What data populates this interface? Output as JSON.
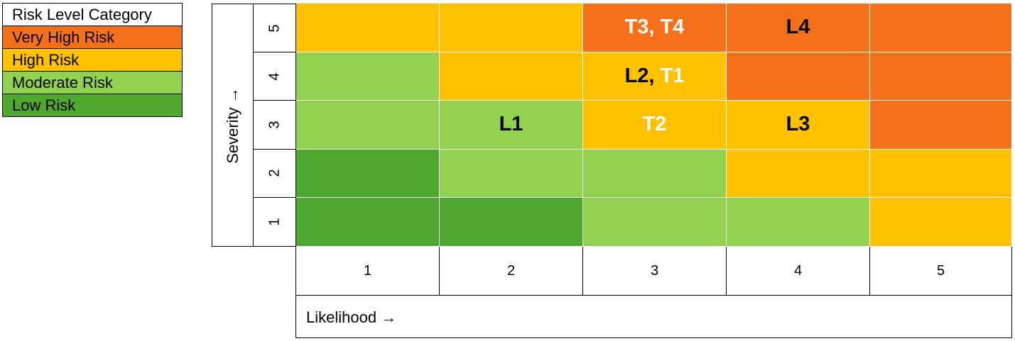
{
  "legend": {
    "title": "Risk Level Category",
    "items": [
      {
        "label": "Very High Risk",
        "color": "#F4711A"
      },
      {
        "label": "High Risk",
        "color": "#FFC000"
      },
      {
        "label": "Moderate Risk",
        "color": "#92D050"
      },
      {
        "label": "Low Risk",
        "color": "#4EA72E"
      }
    ]
  },
  "axes": {
    "y_label": "Severity →",
    "x_label": "Likelihood →",
    "y_ticks": [
      "5",
      "4",
      "3",
      "2",
      "1"
    ],
    "x_ticks": [
      "1",
      "2",
      "3",
      "4",
      "5"
    ]
  },
  "matrix": {
    "rows": [
      {
        "severity": "5",
        "cells": [
          {
            "level": "High Risk",
            "labels": []
          },
          {
            "level": "High Risk",
            "labels": []
          },
          {
            "level": "Very High Risk",
            "labels": [
              {
                "text": "T3, T4",
                "color": "#FFFFFF"
              }
            ]
          },
          {
            "level": "Very High Risk",
            "labels": [
              {
                "text": "L4",
                "color": "#000000"
              }
            ]
          },
          {
            "level": "Very High Risk",
            "labels": []
          }
        ]
      },
      {
        "severity": "4",
        "cells": [
          {
            "level": "Moderate Risk",
            "labels": []
          },
          {
            "level": "High Risk",
            "labels": []
          },
          {
            "level": "High Risk",
            "labels": [
              {
                "text": "L2, ",
                "color": "#000000"
              },
              {
                "text": "T1",
                "color": "#FFFFFF"
              }
            ]
          },
          {
            "level": "Very High Risk",
            "labels": []
          },
          {
            "level": "Very High Risk",
            "labels": []
          }
        ]
      },
      {
        "severity": "3",
        "cells": [
          {
            "level": "Moderate Risk",
            "labels": []
          },
          {
            "level": "Moderate Risk",
            "labels": [
              {
                "text": "L1",
                "color": "#000000"
              }
            ]
          },
          {
            "level": "High Risk",
            "labels": [
              {
                "text": "T2",
                "color": "#FFFFFF"
              }
            ]
          },
          {
            "level": "High Risk",
            "labels": [
              {
                "text": "L3",
                "color": "#000000"
              }
            ]
          },
          {
            "level": "Very High Risk",
            "labels": []
          }
        ]
      },
      {
        "severity": "2",
        "cells": [
          {
            "level": "Low Risk",
            "labels": []
          },
          {
            "level": "Moderate Risk",
            "labels": []
          },
          {
            "level": "Moderate Risk",
            "labels": []
          },
          {
            "level": "High Risk",
            "labels": []
          },
          {
            "level": "High Risk",
            "labels": []
          }
        ]
      },
      {
        "severity": "1",
        "cells": [
          {
            "level": "Low Risk",
            "labels": []
          },
          {
            "level": "Low Risk",
            "labels": []
          },
          {
            "level": "Moderate Risk",
            "labels": []
          },
          {
            "level": "Moderate Risk",
            "labels": []
          },
          {
            "level": "High Risk",
            "labels": []
          }
        ]
      }
    ]
  }
}
